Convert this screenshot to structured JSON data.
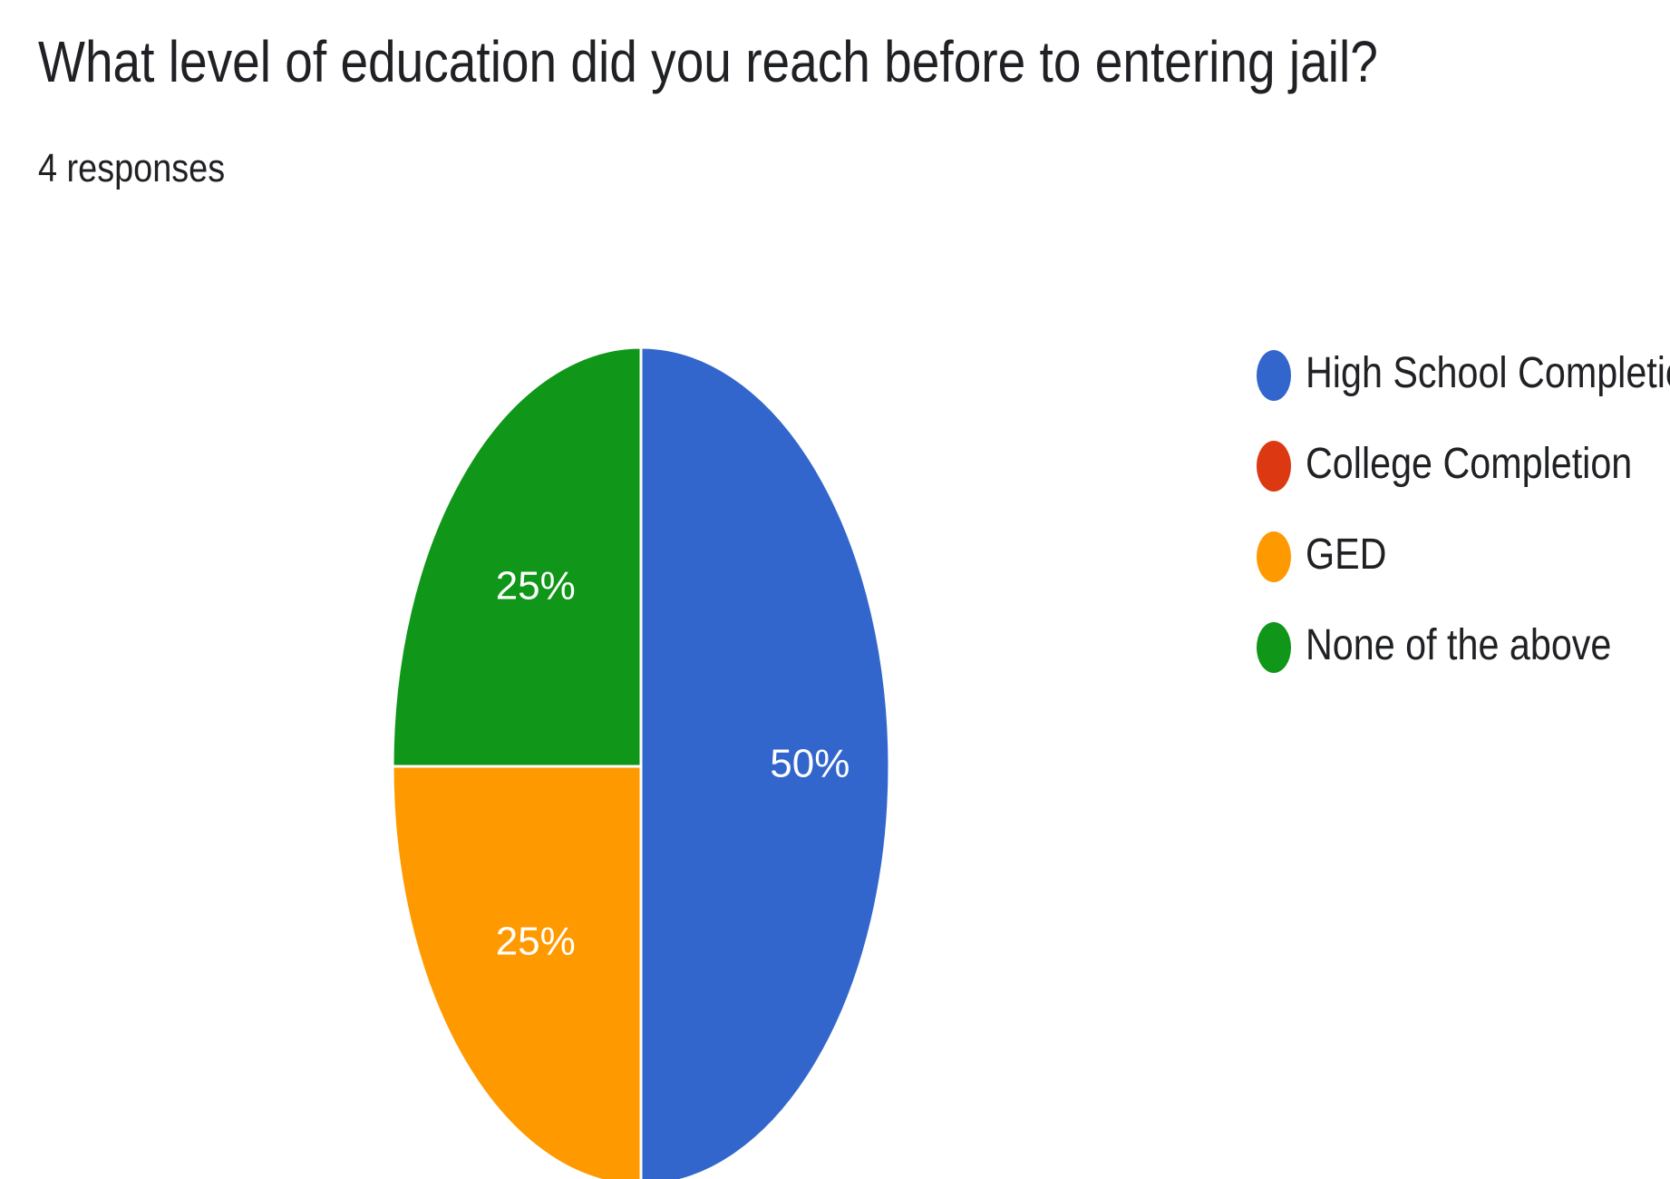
{
  "header": {
    "title": "What level of education did you reach before to entering jail?",
    "subtitle": "4 responses"
  },
  "chart_data": {
    "type": "pie",
    "title": "What level of education did you reach before to entering jail?",
    "subtitle": "4 responses",
    "slices": [
      {
        "label": "High School Completion",
        "value": 50,
        "display": "50%",
        "color": "#3366cc"
      },
      {
        "label": "College Completion",
        "value": 0,
        "display": "",
        "color": "#dc3912"
      },
      {
        "label": "GED",
        "value": 25,
        "display": "25%",
        "color": "#ff9900"
      },
      {
        "label": "None of the above",
        "value": 25,
        "display": "25%",
        "color": "#109618"
      }
    ],
    "legend_position": "right"
  }
}
